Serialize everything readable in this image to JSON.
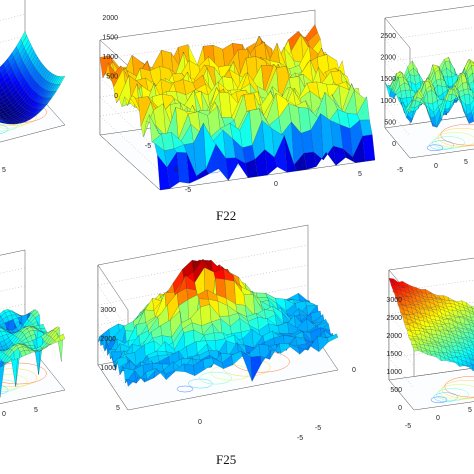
{
  "captions": {
    "f22": "F22",
    "f25": "F25"
  },
  "chart_data": [
    {
      "type": "surface",
      "panel": "top-left",
      "x_ticks": [
        "5"
      ],
      "y_ticks": [],
      "z_ticks": [],
      "colormap": "jet",
      "shape": "bowl with rising rim",
      "grid": true
    },
    {
      "type": "surface",
      "panel": "top-center",
      "title": "F22",
      "x_ticks": [
        "-5",
        "0",
        "5"
      ],
      "y_ticks": [
        "-5",
        "0"
      ],
      "z_ticks": [
        "0",
        "500",
        "1000",
        "1500",
        "2000"
      ],
      "zlim": [
        0,
        2000
      ],
      "colormap": "jet",
      "shape": "noisy plateau at ~1000-1500 dropping to 0 on front edge",
      "grid": true
    },
    {
      "type": "surface",
      "panel": "top-right",
      "x_ticks": [
        "-5",
        "0",
        "5"
      ],
      "y_ticks": [],
      "z_ticks": [
        "0",
        "500",
        "1000",
        "1500",
        "2000",
        "2500"
      ],
      "zlim": [
        0,
        2500
      ],
      "colormap": "jet",
      "shape": "multimodal wavy ridges",
      "grid": true
    },
    {
      "type": "surface",
      "panel": "bottom-left",
      "x_ticks": [
        "0",
        "5"
      ],
      "y_ticks": [],
      "z_ticks": [],
      "colormap": "jet",
      "shape": "multimodal saddle",
      "grid": true
    },
    {
      "type": "surface",
      "panel": "bottom-center",
      "title": "F25",
      "x_ticks": [
        "5",
        "0",
        "-5"
      ],
      "y_ticks": [
        "-5",
        "0"
      ],
      "z_ticks": [
        "1000",
        "2000",
        "3000"
      ],
      "zlim": [
        0,
        3000
      ],
      "colormap": "jet",
      "shape": "large central hump with noisy surrounding plain and spikes down",
      "grid": true
    },
    {
      "type": "surface",
      "panel": "bottom-right",
      "x_ticks": [
        "-5",
        "0",
        "5"
      ],
      "y_ticks": [],
      "z_ticks": [
        "0",
        "500",
        "1000",
        "1500",
        "2000",
        "2500",
        "3000"
      ],
      "zlim": [
        0,
        3000
      ],
      "colormap": "jet",
      "shape": "tilted plane rising to back-left",
      "grid": true
    }
  ]
}
